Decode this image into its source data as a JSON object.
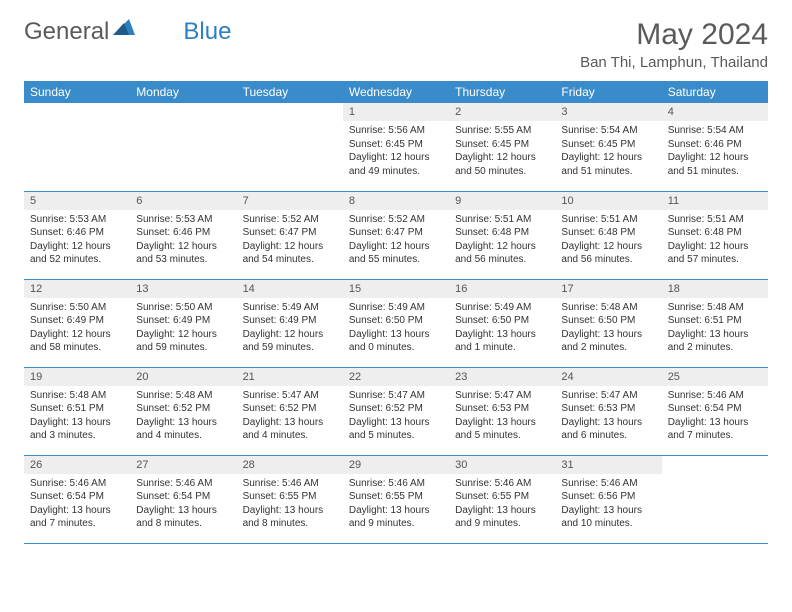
{
  "logo": {
    "text1": "General",
    "text2": "Blue"
  },
  "title": "May 2024",
  "location": "Ban Thi, Lamphun, Thailand",
  "colors": {
    "header_bg": "#3a8bc9",
    "header_text": "#ffffff",
    "daynum_bg": "#eeeeee",
    "rule": "#3a8bc9",
    "text": "#333333",
    "logo_gray": "#5a5a5a",
    "logo_blue": "#2d7fc1"
  },
  "weekdays": [
    "Sunday",
    "Monday",
    "Tuesday",
    "Wednesday",
    "Thursday",
    "Friday",
    "Saturday"
  ],
  "weeks": [
    [
      null,
      null,
      null,
      {
        "n": "1",
        "sr": "5:56 AM",
        "ss": "6:45 PM",
        "dl": "12 hours and 49 minutes."
      },
      {
        "n": "2",
        "sr": "5:55 AM",
        "ss": "6:45 PM",
        "dl": "12 hours and 50 minutes."
      },
      {
        "n": "3",
        "sr": "5:54 AM",
        "ss": "6:45 PM",
        "dl": "12 hours and 51 minutes."
      },
      {
        "n": "4",
        "sr": "5:54 AM",
        "ss": "6:46 PM",
        "dl": "12 hours and 51 minutes."
      }
    ],
    [
      {
        "n": "5",
        "sr": "5:53 AM",
        "ss": "6:46 PM",
        "dl": "12 hours and 52 minutes."
      },
      {
        "n": "6",
        "sr": "5:53 AM",
        "ss": "6:46 PM",
        "dl": "12 hours and 53 minutes."
      },
      {
        "n": "7",
        "sr": "5:52 AM",
        "ss": "6:47 PM",
        "dl": "12 hours and 54 minutes."
      },
      {
        "n": "8",
        "sr": "5:52 AM",
        "ss": "6:47 PM",
        "dl": "12 hours and 55 minutes."
      },
      {
        "n": "9",
        "sr": "5:51 AM",
        "ss": "6:48 PM",
        "dl": "12 hours and 56 minutes."
      },
      {
        "n": "10",
        "sr": "5:51 AM",
        "ss": "6:48 PM",
        "dl": "12 hours and 56 minutes."
      },
      {
        "n": "11",
        "sr": "5:51 AM",
        "ss": "6:48 PM",
        "dl": "12 hours and 57 minutes."
      }
    ],
    [
      {
        "n": "12",
        "sr": "5:50 AM",
        "ss": "6:49 PM",
        "dl": "12 hours and 58 minutes."
      },
      {
        "n": "13",
        "sr": "5:50 AM",
        "ss": "6:49 PM",
        "dl": "12 hours and 59 minutes."
      },
      {
        "n": "14",
        "sr": "5:49 AM",
        "ss": "6:49 PM",
        "dl": "12 hours and 59 minutes."
      },
      {
        "n": "15",
        "sr": "5:49 AM",
        "ss": "6:50 PM",
        "dl": "13 hours and 0 minutes."
      },
      {
        "n": "16",
        "sr": "5:49 AM",
        "ss": "6:50 PM",
        "dl": "13 hours and 1 minute."
      },
      {
        "n": "17",
        "sr": "5:48 AM",
        "ss": "6:50 PM",
        "dl": "13 hours and 2 minutes."
      },
      {
        "n": "18",
        "sr": "5:48 AM",
        "ss": "6:51 PM",
        "dl": "13 hours and 2 minutes."
      }
    ],
    [
      {
        "n": "19",
        "sr": "5:48 AM",
        "ss": "6:51 PM",
        "dl": "13 hours and 3 minutes."
      },
      {
        "n": "20",
        "sr": "5:48 AM",
        "ss": "6:52 PM",
        "dl": "13 hours and 4 minutes."
      },
      {
        "n": "21",
        "sr": "5:47 AM",
        "ss": "6:52 PM",
        "dl": "13 hours and 4 minutes."
      },
      {
        "n": "22",
        "sr": "5:47 AM",
        "ss": "6:52 PM",
        "dl": "13 hours and 5 minutes."
      },
      {
        "n": "23",
        "sr": "5:47 AM",
        "ss": "6:53 PM",
        "dl": "13 hours and 5 minutes."
      },
      {
        "n": "24",
        "sr": "5:47 AM",
        "ss": "6:53 PM",
        "dl": "13 hours and 6 minutes."
      },
      {
        "n": "25",
        "sr": "5:46 AM",
        "ss": "6:54 PM",
        "dl": "13 hours and 7 minutes."
      }
    ],
    [
      {
        "n": "26",
        "sr": "5:46 AM",
        "ss": "6:54 PM",
        "dl": "13 hours and 7 minutes."
      },
      {
        "n": "27",
        "sr": "5:46 AM",
        "ss": "6:54 PM",
        "dl": "13 hours and 8 minutes."
      },
      {
        "n": "28",
        "sr": "5:46 AM",
        "ss": "6:55 PM",
        "dl": "13 hours and 8 minutes."
      },
      {
        "n": "29",
        "sr": "5:46 AM",
        "ss": "6:55 PM",
        "dl": "13 hours and 9 minutes."
      },
      {
        "n": "30",
        "sr": "5:46 AM",
        "ss": "6:55 PM",
        "dl": "13 hours and 9 minutes."
      },
      {
        "n": "31",
        "sr": "5:46 AM",
        "ss": "6:56 PM",
        "dl": "13 hours and 10 minutes."
      },
      null
    ]
  ],
  "labels": {
    "sunrise": "Sunrise:",
    "sunset": "Sunset:",
    "daylight": "Daylight:"
  }
}
